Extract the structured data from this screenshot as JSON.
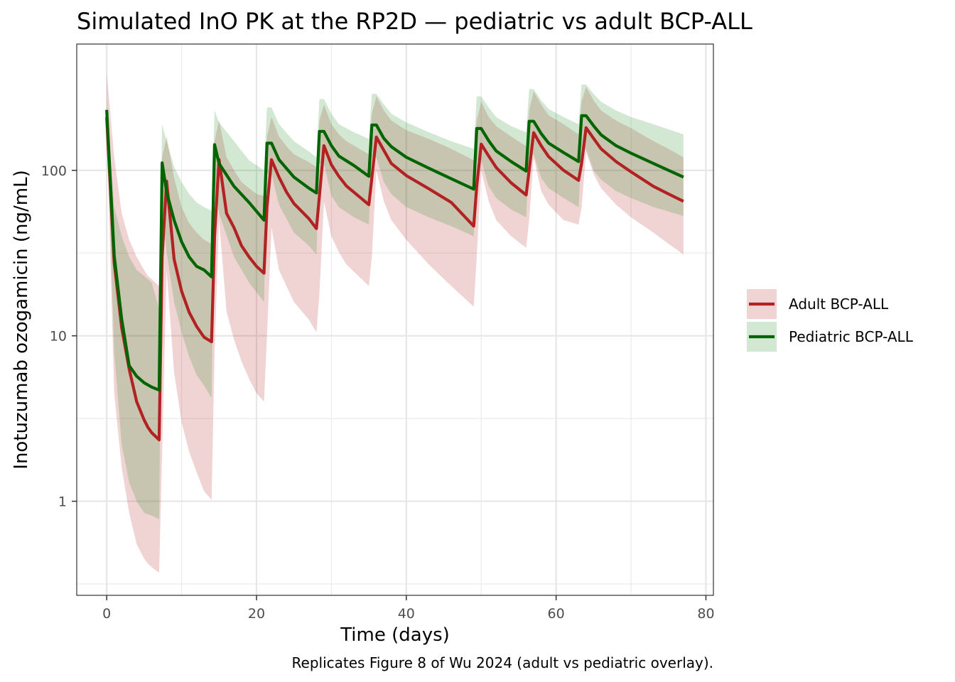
{
  "chart_data": {
    "type": "line",
    "title": "Simulated InO PK at the RP2D — pediatric vs adult BCP-ALL",
    "xlabel": "Time (days)",
    "ylabel": "Inotuzumab ozogamicin (ng/mL)",
    "caption": "Replicates Figure 8 of Wu 2024 (adult vs pediatric overlay).",
    "x_scale": "linear",
    "y_scale": "log10",
    "xlim": [
      -4,
      81
    ],
    "ylim": [
      0.27,
      580
    ],
    "x_ticks": [
      0,
      20,
      40,
      60,
      80
    ],
    "x_tick_labels": [
      "0",
      "20",
      "40",
      "60",
      "80"
    ],
    "y_ticks": [
      1,
      10,
      100
    ],
    "y_tick_labels": [
      "1",
      "10",
      "100"
    ],
    "grid": true,
    "legend_position": "right",
    "series": [
      {
        "name": "Adult BCP-ALL",
        "color": "#b22222",
        "band_color": "#b22222",
        "band_opacity": 0.2,
        "x": [
          0,
          1,
          2,
          3,
          4,
          5,
          5.5,
          6,
          7,
          7.4,
          8,
          9,
          10,
          11,
          12,
          13,
          14,
          14.4,
          15,
          16,
          17,
          18,
          19,
          20,
          21,
          21.4,
          22,
          23,
          24,
          25,
          27,
          28,
          28.4,
          29,
          30,
          31,
          32,
          35,
          35.4,
          36,
          37,
          38,
          40,
          43,
          46,
          49,
          49.4,
          50,
          51,
          52,
          54,
          56,
          56.4,
          57,
          58,
          59,
          61,
          63,
          63.4,
          64,
          65,
          66,
          68,
          70,
          73,
          75,
          77
        ],
        "median": [
          210,
          27.7,
          11.2,
          6.3,
          4.0,
          3.1,
          2.8,
          2.6,
          2.35,
          30,
          86,
          29,
          18.6,
          13.9,
          11.4,
          9.8,
          9.2,
          40,
          116,
          55,
          45,
          35,
          30,
          26.3,
          23.9,
          60,
          116,
          91,
          74,
          63,
          51,
          44.5,
          70,
          141,
          108,
          92,
          80.5,
          62,
          90,
          159,
          132,
          110,
          93,
          77.4,
          64,
          46,
          80,
          144,
          122,
          104,
          84,
          71,
          100,
          169,
          141,
          121,
          100,
          87,
          110,
          181,
          156,
          135,
          113,
          98,
          80,
          72,
          65
        ],
        "lower": [
          180,
          4.5,
          1.6,
          0.85,
          0.55,
          0.45,
          0.42,
          0.4,
          0.37,
          2,
          25,
          6,
          3.0,
          2.0,
          1.5,
          1.15,
          1.02,
          8,
          50,
          14,
          9.5,
          7.0,
          5.5,
          4.5,
          4.0,
          10,
          45,
          25,
          20,
          16,
          12.5,
          10.5,
          18,
          65,
          40,
          32,
          27,
          20,
          30,
          100,
          65,
          50,
          38,
          27,
          20,
          15,
          30,
          100,
          65,
          50,
          40,
          34,
          50,
          120,
          75,
          62,
          50,
          47,
          60,
          130,
          95,
          78,
          62,
          52,
          42,
          36,
          31
        ],
        "upper": [
          390,
          120,
          55,
          38,
          30,
          25,
          23,
          22,
          20,
          120,
          160,
          90,
          60,
          48,
          42,
          38,
          36,
          150,
          200,
          120,
          100,
          85,
          78,
          72,
          70,
          160,
          210,
          160,
          140,
          125,
          112,
          105,
          200,
          250,
          190,
          165,
          150,
          125,
          220,
          280,
          230,
          200,
          175,
          155,
          135,
          115,
          200,
          260,
          210,
          185,
          160,
          140,
          230,
          300,
          250,
          215,
          190,
          165,
          260,
          320,
          265,
          230,
          200,
          180,
          150,
          135,
          120
        ]
      },
      {
        "name": "Pediatric BCP-ALL",
        "color": "#006400",
        "band_color": "#228b22",
        "band_opacity": 0.2,
        "x": [
          0,
          1,
          2,
          3,
          4,
          5,
          6,
          7,
          7.4,
          8,
          9,
          10,
          11,
          12,
          13,
          14,
          14.4,
          15,
          17,
          19,
          21,
          21.4,
          22,
          23,
          25,
          27,
          28,
          28.4,
          29,
          30,
          31,
          33,
          35,
          35.4,
          36,
          37,
          38,
          40,
          43,
          46,
          49,
          49.4,
          50,
          51,
          52,
          54,
          56,
          56.4,
          57,
          58,
          59,
          61,
          63,
          63.4,
          64,
          65,
          66,
          68,
          70,
          73,
          77
        ],
        "median": [
          232,
          30.5,
          12.6,
          6.6,
          5.7,
          5.2,
          4.9,
          4.7,
          111,
          74,
          50,
          37,
          30,
          26.3,
          25,
          22.7,
          143,
          110,
          80,
          64,
          50,
          146,
          146,
          116,
          91,
          78,
          73,
          172,
          172,
          141,
          122,
          107,
          92,
          188,
          188,
          156,
          139,
          120,
          103,
          89,
          77,
          179,
          179,
          151,
          131,
          113,
          99,
          198,
          198,
          167,
          146,
          128,
          113,
          214,
          214,
          186,
          164,
          141,
          127,
          110,
          91
        ],
        "lower": [
          200,
          8,
          2.2,
          1.3,
          1.0,
          0.85,
          0.82,
          0.78,
          60,
          32,
          16,
          10.5,
          7.5,
          5.8,
          5.0,
          4.2,
          85,
          55,
          30,
          21,
          16,
          95,
          95,
          62,
          42,
          35,
          31,
          110,
          110,
          70,
          60,
          52,
          47,
          120,
          120,
          85,
          72,
          60,
          52,
          46,
          40,
          115,
          115,
          80,
          68,
          58,
          52,
          125,
          125,
          90,
          78,
          68,
          60,
          135,
          135,
          100,
          88,
          75,
          68,
          60,
          53
        ],
        "upper": [
          250,
          60,
          40,
          30,
          25,
          23,
          21,
          14.5,
          190,
          150,
          105,
          85,
          72,
          64,
          60,
          57,
          230,
          195,
          150,
          115,
          100,
          240,
          240,
          190,
          150,
          130,
          120,
          270,
          270,
          220,
          190,
          170,
          155,
          290,
          290,
          250,
          220,
          195,
          170,
          150,
          135,
          280,
          280,
          240,
          210,
          185,
          170,
          310,
          310,
          265,
          235,
          210,
          190,
          330,
          330,
          290,
          260,
          230,
          210,
          190,
          165
        ]
      }
    ]
  }
}
